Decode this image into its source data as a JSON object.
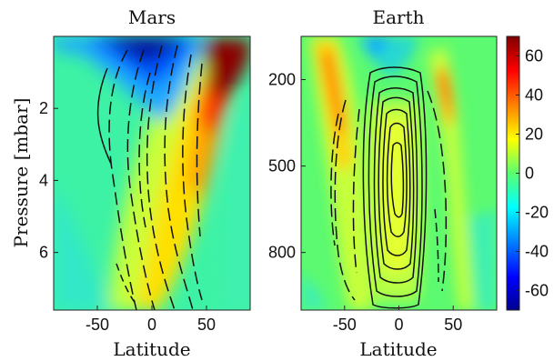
{
  "chart_data": [
    {
      "type": "heatmap",
      "title": "Mars",
      "xlabel": "Latitude",
      "ylabel": "Pressure [mbar]",
      "xlim": [
        -90,
        90
      ],
      "ylim": [
        0,
        7.6
      ],
      "y_inverted": true,
      "xticks": [
        -50,
        0,
        50
      ],
      "xtick_labels": [
        "-50",
        "0",
        "50"
      ],
      "yticks": [
        2,
        4,
        6
      ],
      "ytick_labels": [
        "2",
        "4",
        "6"
      ],
      "color_features": [
        {
          "lat": 60,
          "p": 1.0,
          "value": 70
        },
        {
          "lat": 45,
          "p": 3.5,
          "value": 30
        },
        {
          "lat": 30,
          "p": 6.5,
          "value": 15
        },
        {
          "lat": -10,
          "p": 0.3,
          "value": -60
        },
        {
          "lat": -40,
          "p": 0.8,
          "value": -20
        }
      ],
      "contours": "dashed negative streamfunction across -40..40 latitude, plus weak solid cell near -50"
    },
    {
      "type": "heatmap",
      "title": "Earth",
      "xlabel": "Latitude",
      "xlim": [
        -90,
        90
      ],
      "ylim": [
        50,
        1000
      ],
      "y_inverted": true,
      "xticks": [
        -50,
        0,
        50
      ],
      "xtick_labels": [
        "-50",
        "0",
        "50"
      ],
      "yticks": [
        200,
        500,
        800
      ],
      "ytick_labels": [
        "200",
        "500",
        "800"
      ],
      "color_features": [
        {
          "lat": -45,
          "p": 300,
          "value": 25
        },
        {
          "lat": 45,
          "p": 220,
          "value": 30
        },
        {
          "lat": -25,
          "p": 100,
          "value": -40
        },
        {
          "lat": 0,
          "p": 600,
          "value": 10
        }
      ],
      "contours": "solid concentric cells centered at equator (Hadley), dashed lobes near +/-35 latitude"
    }
  ],
  "colorbar": {
    "min": -70,
    "max": 70,
    "ticks": [
      60,
      40,
      20,
      0,
      -20,
      -40,
      -60
    ],
    "tick_labels": [
      "60",
      "40",
      "20",
      "0",
      "-20",
      "-40",
      "-60"
    ],
    "colormap": "jet"
  }
}
